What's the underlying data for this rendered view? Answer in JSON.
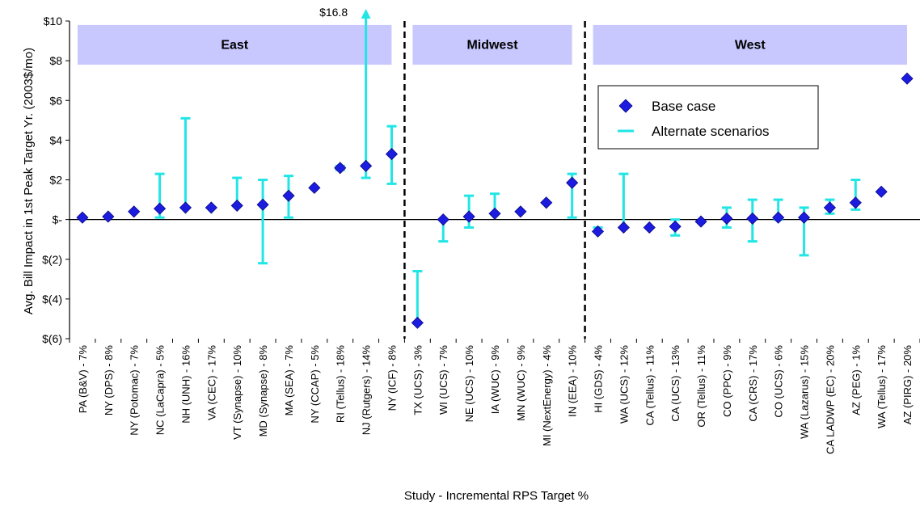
{
  "chart_data": {
    "type": "scatter",
    "xlabel": "Study - Incremental RPS Target %",
    "ylabel": "Avg. Bill Impact in 1st Peak Target Yr. (2003$/mo)",
    "ylim": [
      -6,
      10
    ],
    "y_ticks": [
      10,
      8,
      6,
      4,
      2,
      0,
      -2,
      -4,
      -6
    ],
    "y_tick_labels": [
      "$10",
      "$8",
      "$6",
      "$4",
      "$2",
      "$-",
      "$(2)",
      "$(4)",
      "$(6)"
    ],
    "grid": false,
    "legend_position": "top-right",
    "colors": {
      "base": "#1c1ce0",
      "alternate": "#22e5e5",
      "region_fill": "#c8c8ff",
      "divider": "#000000"
    },
    "regions": [
      {
        "name": "East",
        "first_index": 0,
        "last_index": 12
      },
      {
        "name": "Midwest",
        "first_index": 13,
        "last_index": 19
      },
      {
        "name": "West",
        "first_index": 20,
        "last_index": 32
      }
    ],
    "annotations": [
      {
        "text": "$16.8",
        "category_index": 11
      }
    ],
    "series": [
      {
        "name": "Base case",
        "marker": "diamond"
      },
      {
        "name": "Alternate scenarios",
        "marker": "range-bar"
      }
    ],
    "points": [
      {
        "label": "PA (B&V) - 7%",
        "base": 0.1,
        "alt_low": null,
        "alt_high": null
      },
      {
        "label": "NY (DPS) - 8%",
        "base": 0.15,
        "alt_low": null,
        "alt_high": null
      },
      {
        "label": "NY (Potomac) - 7%",
        "base": 0.4,
        "alt_low": null,
        "alt_high": null
      },
      {
        "label": "NC (LaCapra) - 5%",
        "base": 0.55,
        "alt_low": 0.1,
        "alt_high": 2.3
      },
      {
        "label": "NH (UNH) - 16%",
        "base": 0.6,
        "alt_low": 0.6,
        "alt_high": 5.1
      },
      {
        "label": "VA (CEC) - 17%",
        "base": 0.6,
        "alt_low": null,
        "alt_high": null
      },
      {
        "label": "VT (Synapse) - 10%",
        "base": 0.7,
        "alt_low": 0.7,
        "alt_high": 2.1
      },
      {
        "label": "MD (Synapse) - 8%",
        "base": 0.75,
        "alt_low": -2.2,
        "alt_high": 2.0
      },
      {
        "label": "MA (SEA) - 7%",
        "base": 1.2,
        "alt_low": 0.1,
        "alt_high": 2.2
      },
      {
        "label": "NY (CCAP) - 5%",
        "base": 1.6,
        "alt_low": null,
        "alt_high": null
      },
      {
        "label": "RI (Tellus) - 18%",
        "base": 2.6,
        "alt_low": 2.5,
        "alt_high": 2.7
      },
      {
        "label": "NJ (Rutgers) - 14%",
        "base": 2.7,
        "alt_low": 2.1,
        "alt_high": 16.8
      },
      {
        "label": "NY (ICF) - 8%",
        "base": 3.3,
        "alt_low": 1.8,
        "alt_high": 4.7
      },
      {
        "label": "TX (UCS) - 3%",
        "base": -5.2,
        "alt_low": -5.2,
        "alt_high": -2.6
      },
      {
        "label": "WI (UCS) - 7%",
        "base": 0.0,
        "alt_low": -1.1,
        "alt_high": 0.0
      },
      {
        "label": "NE (UCS) - 10%",
        "base": 0.15,
        "alt_low": -0.4,
        "alt_high": 1.2
      },
      {
        "label": "IA (WUC) - 9%",
        "base": 0.3,
        "alt_low": 0.3,
        "alt_high": 1.3
      },
      {
        "label": "MN (WUC) - 9%",
        "base": 0.4,
        "alt_low": null,
        "alt_high": null
      },
      {
        "label": "MI (NextEnergy) - 4%",
        "base": 0.85,
        "alt_low": null,
        "alt_high": null
      },
      {
        "label": "IN (EEA) - 10%",
        "base": 1.85,
        "alt_low": 0.1,
        "alt_high": 2.3
      },
      {
        "label": "HI (GDS) - 4%",
        "base": -0.6,
        "alt_low": -0.6,
        "alt_high": -0.4
      },
      {
        "label": "WA (UCS) - 12%",
        "base": -0.4,
        "alt_low": -0.4,
        "alt_high": 2.3
      },
      {
        "label": "CA (Tellus) - 11%",
        "base": -0.4,
        "alt_low": null,
        "alt_high": null
      },
      {
        "label": "CA (UCS) - 13%",
        "base": -0.35,
        "alt_low": -0.8,
        "alt_high": 0.0
      },
      {
        "label": "OR (Tellus) - 11%",
        "base": -0.1,
        "alt_low": null,
        "alt_high": null
      },
      {
        "label": "CO (PPC) - 9%",
        "base": 0.05,
        "alt_low": -0.4,
        "alt_high": 0.6
      },
      {
        "label": "CA (CRS) - 17%",
        "base": 0.05,
        "alt_low": -1.1,
        "alt_high": 1.0
      },
      {
        "label": "CO (UCS) - 6%",
        "base": 0.1,
        "alt_low": 0.0,
        "alt_high": 1.0
      },
      {
        "label": "WA (Lazarus) - 15%",
        "base": 0.1,
        "alt_low": -1.8,
        "alt_high": 0.6
      },
      {
        "label": "CA LADWP (EC) - 20%",
        "base": 0.6,
        "alt_low": 0.3,
        "alt_high": 1.0
      },
      {
        "label": "AZ (PEG) - 1%",
        "base": 0.85,
        "alt_low": 0.5,
        "alt_high": 2.0
      },
      {
        "label": "WA (Tellus) - 17%",
        "base": 1.4,
        "alt_low": null,
        "alt_high": null
      },
      {
        "label": "AZ (PIRG) - 20%",
        "base": 7.1,
        "alt_low": null,
        "alt_high": null
      }
    ]
  }
}
